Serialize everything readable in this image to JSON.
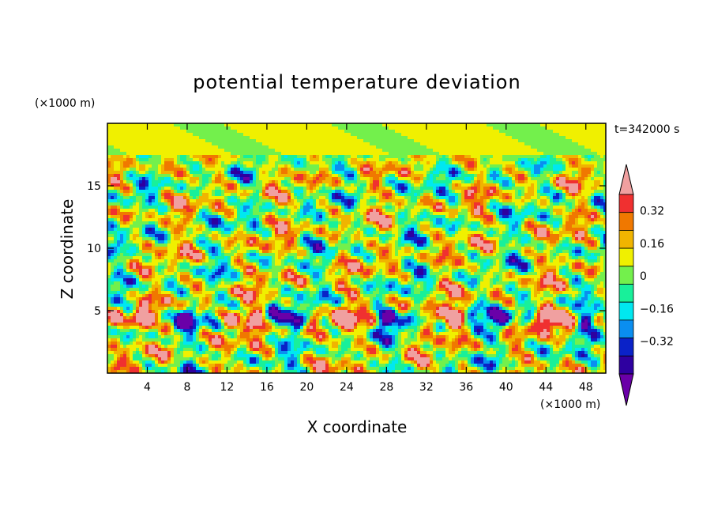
{
  "chart_data": {
    "type": "heatmap",
    "title": "potential temperature deviation",
    "time_label": "t=342000 s",
    "x_unit": "(×1000 m)",
    "y_unit": "(×1000 m)",
    "xlabel": "X coordinate",
    "ylabel": "Z coordinate",
    "xlim": [
      0,
      50
    ],
    "ylim": [
      0,
      20
    ],
    "x_ticks": [
      "4",
      "8",
      "12",
      "16",
      "20",
      "24",
      "28",
      "32",
      "36",
      "40",
      "44",
      "48"
    ],
    "y_ticks": [
      "5",
      "10",
      "15"
    ],
    "colorbar": {
      "levels": [
        -0.48,
        -0.4,
        -0.32,
        -0.24,
        -0.16,
        -0.08,
        0,
        0.08,
        0.16,
        0.24,
        0.32,
        0.4
      ],
      "tick_labels": [
        "0.32",
        "0.16",
        "0",
        "−0.16",
        "−0.32"
      ],
      "tick_values": [
        0.32,
        0.16,
        0,
        -0.16,
        -0.32
      ],
      "colors": [
        "#6a00a8",
        "#2e00a0",
        "#0a22c8",
        "#0a8ef0",
        "#00e8f0",
        "#18f09a",
        "#73f04c",
        "#f0f000",
        "#f0b400",
        "#f07800",
        "#f03030",
        "#f0a0a0"
      ]
    }
  }
}
